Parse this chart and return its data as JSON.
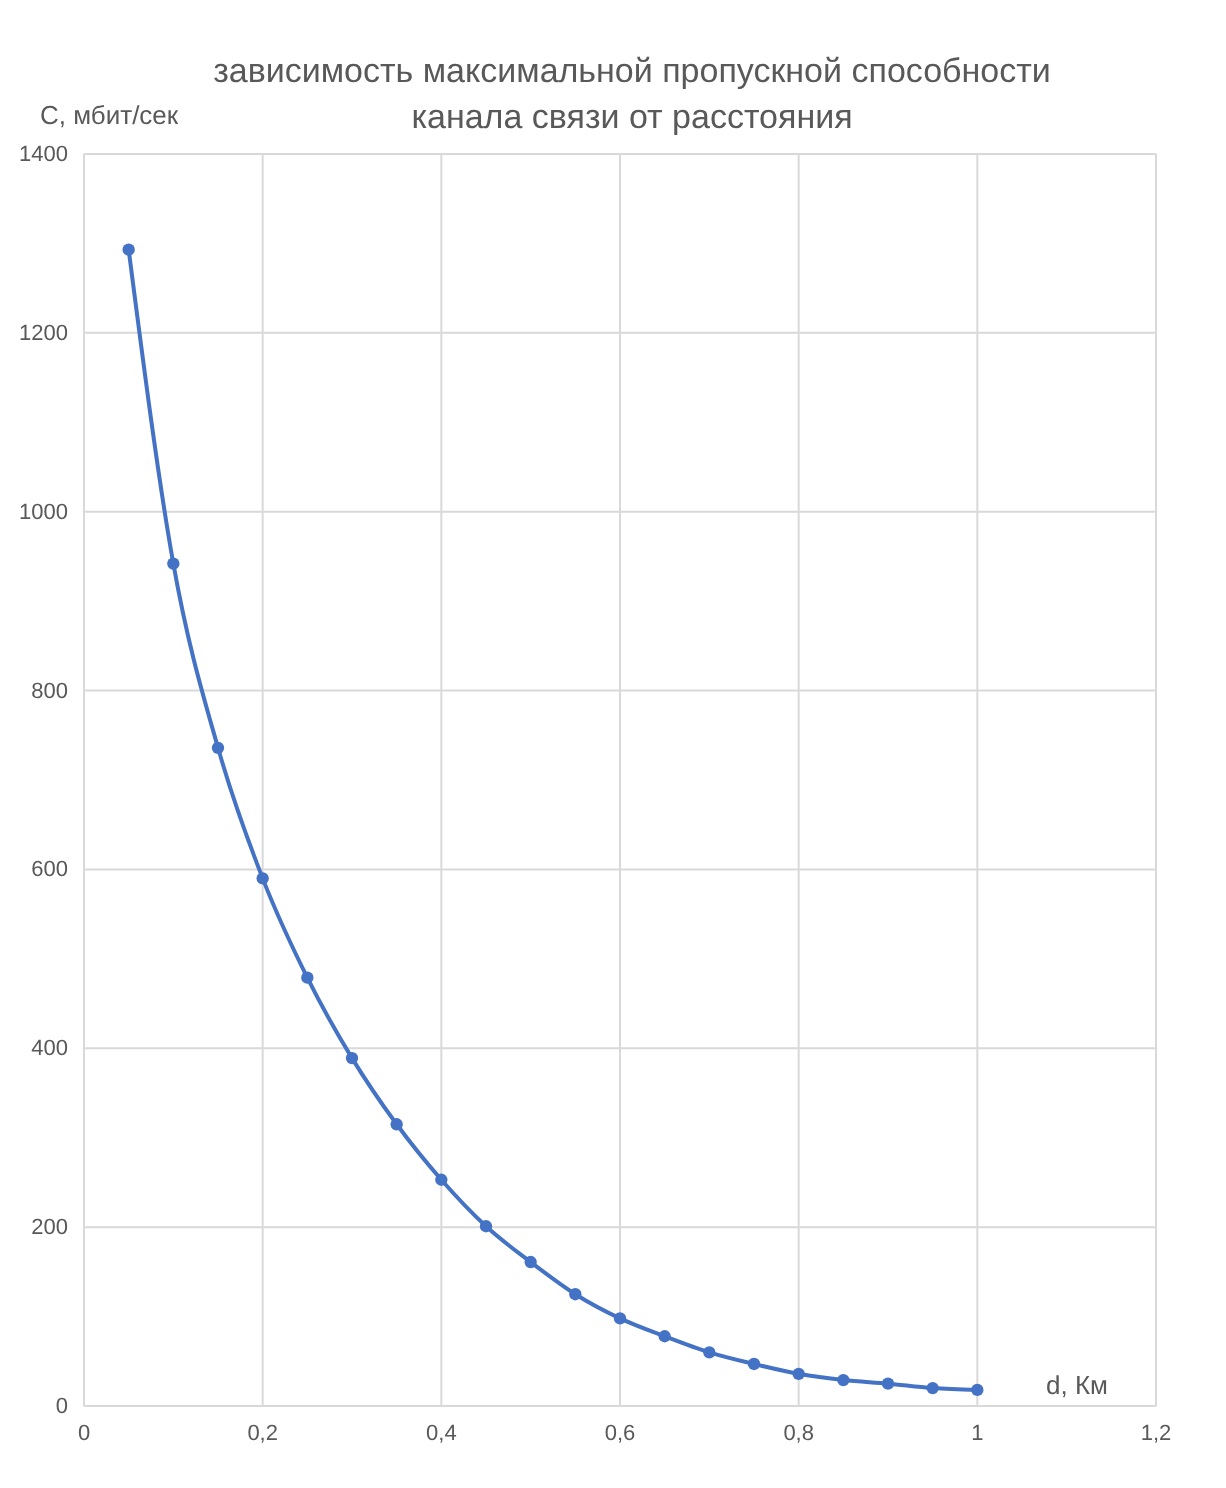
{
  "chart_data": {
    "type": "line",
    "title": "зависимость максимальной пропускной способности канала связи от расстояния",
    "xlabel": "d, Км",
    "ylabel": "C, мбит/сек",
    "x": [
      0.05,
      0.1,
      0.15,
      0.2,
      0.25,
      0.3,
      0.35,
      0.4,
      0.45,
      0.5,
      0.55,
      0.6,
      0.65,
      0.7,
      0.75,
      0.8,
      0.85,
      0.9,
      0.95,
      1.0
    ],
    "series": [
      {
        "color": "#4472c4",
        "values": [
          1293,
          942,
          736,
          590,
          479,
          389,
          315,
          253,
          201,
          161,
          125,
          98,
          78,
          60,
          47,
          36,
          29,
          25,
          20,
          18
        ]
      }
    ],
    "xlim": [
      0,
      1.2
    ],
    "xticks": [
      0,
      {
        "value": 0.2,
        "label": "0,2"
      },
      {
        "value": 0.4,
        "label": "0,4"
      },
      {
        "value": 0.6,
        "label": "0,6"
      },
      {
        "value": 0.8,
        "label": "0,8"
      },
      1,
      {
        "value": 1.2,
        "label": "1,2"
      }
    ],
    "ylim": [
      0,
      1400
    ],
    "yticks": [
      0,
      200,
      400,
      600,
      800,
      1000,
      1200,
      1400
    ],
    "grid": true,
    "marker": "circle",
    "line_style": "solid"
  }
}
